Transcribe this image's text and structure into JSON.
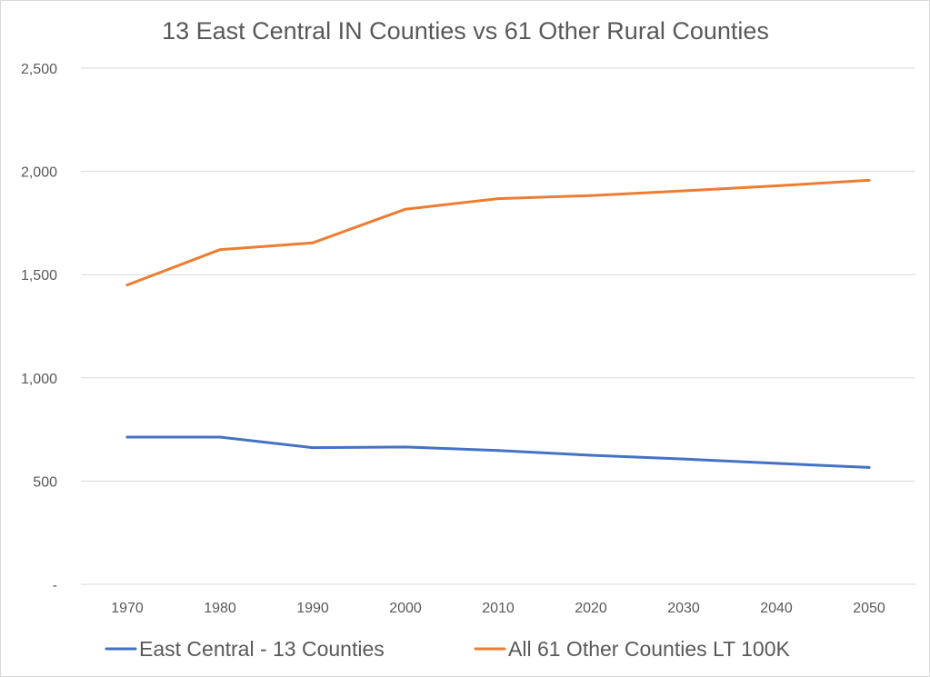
{
  "chart_data": {
    "type": "line",
    "title": "13 East Central IN Counties vs 61 Other Rural Counties",
    "xlabel": "",
    "ylabel": "",
    "categories": [
      "1970",
      "1980",
      "1990",
      "2000",
      "2010",
      "2020",
      "2030",
      "2040",
      "2050"
    ],
    "ylim": [
      0,
      2500
    ],
    "y_ticks": [
      {
        "value": 0,
        "label": "-"
      },
      {
        "value": 500,
        "label": "500"
      },
      {
        "value": 1000,
        "label": "1,000"
      },
      {
        "value": 1500,
        "label": "1,500"
      },
      {
        "value": 2000,
        "label": "2,000"
      },
      {
        "value": 2500,
        "label": "2,500"
      }
    ],
    "grid": true,
    "legend_position": "bottom",
    "series": [
      {
        "name": "East Central - 13 Counties",
        "color": "#4472C4",
        "values": [
          713,
          713,
          662,
          665,
          648,
          625,
          607,
          586,
          566
        ]
      },
      {
        "name": "All 61 Other Counties LT 100K",
        "color": "#ED7D31",
        "values": [
          1450,
          1621,
          1654,
          1817,
          1868,
          1883,
          1906,
          1930,
          1957
        ]
      }
    ]
  },
  "style": {
    "gridline_color": "#d9d9d9",
    "text_color": "#595959",
    "background": "#ffffff"
  }
}
